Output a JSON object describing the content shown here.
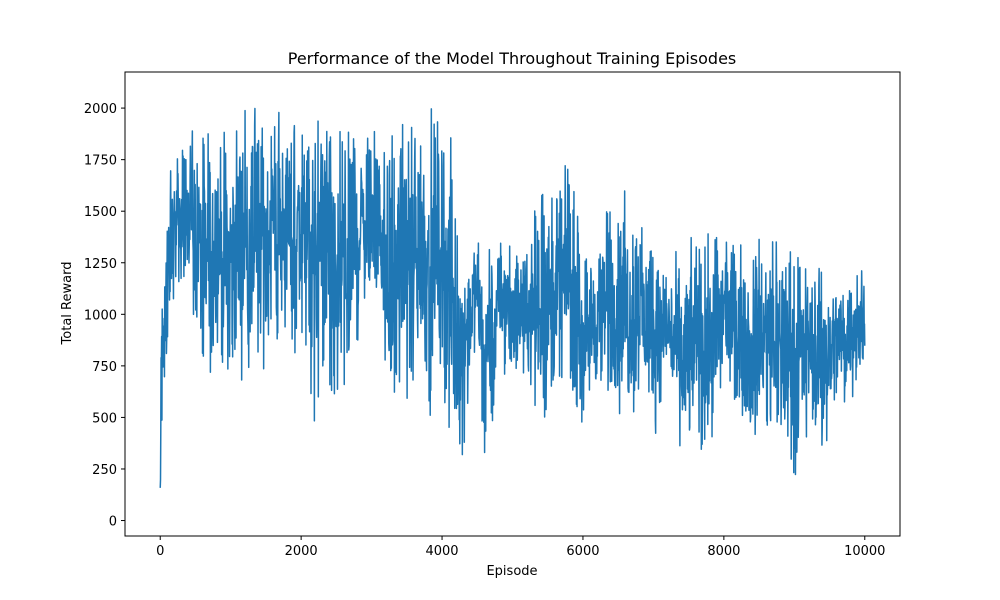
{
  "chart_data": {
    "type": "line",
    "title": "Performance of the Model Throughout Training Episodes",
    "xlabel": "Episode",
    "ylabel": "Total Reward",
    "xlim": [
      -500,
      10500
    ],
    "ylim": [
      -75,
      2175
    ],
    "x_ticks": [
      0,
      2000,
      4000,
      6000,
      8000,
      10000
    ],
    "x_tick_labels": [
      "0",
      "2000",
      "4000",
      "6000",
      "8000",
      "10000"
    ],
    "y_ticks": [
      0,
      250,
      500,
      750,
      1000,
      1250,
      1500,
      1750,
      2000
    ],
    "y_tick_labels": [
      "0",
      "250",
      "500",
      "750",
      "1000",
      "1250",
      "1500",
      "1750",
      "2000"
    ],
    "grid": false,
    "legend": "none",
    "series": [
      {
        "color": "#1f77b4",
        "x": [
          0,
          20,
          40,
          60,
          80,
          100,
          150,
          200,
          300,
          400,
          500,
          600,
          700,
          800,
          900,
          1000,
          1100,
          1200,
          1300,
          1400,
          1500,
          1600,
          1700,
          1800,
          1900,
          2000,
          2100,
          2200,
          2300,
          2400,
          2500,
          2600,
          2700,
          2800,
          2900,
          3000,
          3100,
          3200,
          3300,
          3400,
          3500,
          3600,
          3700,
          3800,
          3900,
          4000,
          4100,
          4200,
          4300,
          4400,
          4500,
          4600,
          4700,
          4800,
          4900,
          5000,
          5200,
          5400,
          5600,
          5800,
          6000,
          6200,
          6400,
          6600,
          6800,
          7000,
          7200,
          7400,
          7600,
          7800,
          8000,
          8200,
          8400,
          8600,
          8800,
          9000,
          9200,
          9400,
          9600,
          9800,
          10000
        ],
        "low": [
          60,
          300,
          550,
          560,
          700,
          800,
          950,
          1050,
          1100,
          1150,
          900,
          650,
          700,
          800,
          600,
          620,
          650,
          700,
          650,
          700,
          750,
          850,
          900,
          950,
          800,
          850,
          700,
          450,
          750,
          650,
          200,
          550,
          700,
          820,
          1000,
          1000,
          1000,
          600,
          200,
          650,
          600,
          420,
          700,
          420,
          700,
          650,
          270,
          280,
          300,
          700,
          800,
          320,
          400,
          750,
          700,
          700,
          700,
          400,
          600,
          650,
          430,
          600,
          550,
          380,
          550,
          380,
          650,
          220,
          330,
          320,
          700,
          550,
          330,
          420,
          380,
          200,
          430,
          320,
          500,
          600,
          600
        ],
        "high": [
          210,
          1180,
          1000,
          1350,
          1600,
          1600,
          1700,
          1750,
          1800,
          1900,
          1880,
          1850,
          1900,
          1930,
          1910,
          1920,
          1950,
          2000,
          2010,
          2020,
          1990,
          1980,
          2000,
          1950,
          1960,
          1970,
          1940,
          1950,
          1950,
          1960,
          1880,
          1920,
          1900,
          1920,
          1910,
          1920,
          1930,
          1950,
          1930,
          1950,
          1960,
          2080,
          1940,
          2060,
          2020,
          2000,
          2050,
          1400,
          1380,
          1350,
          1410,
          1380,
          1360,
          1350,
          1380,
          1320,
          1350,
          1630,
          1550,
          1780,
          1400,
          1350,
          1600,
          1600,
          1590,
          1320,
          1250,
          1340,
          1390,
          1390,
          1370,
          1360,
          1360,
          1400,
          1360,
          1300,
          1300,
          1250,
          1240,
          1230,
          1220
        ]
      }
    ]
  }
}
